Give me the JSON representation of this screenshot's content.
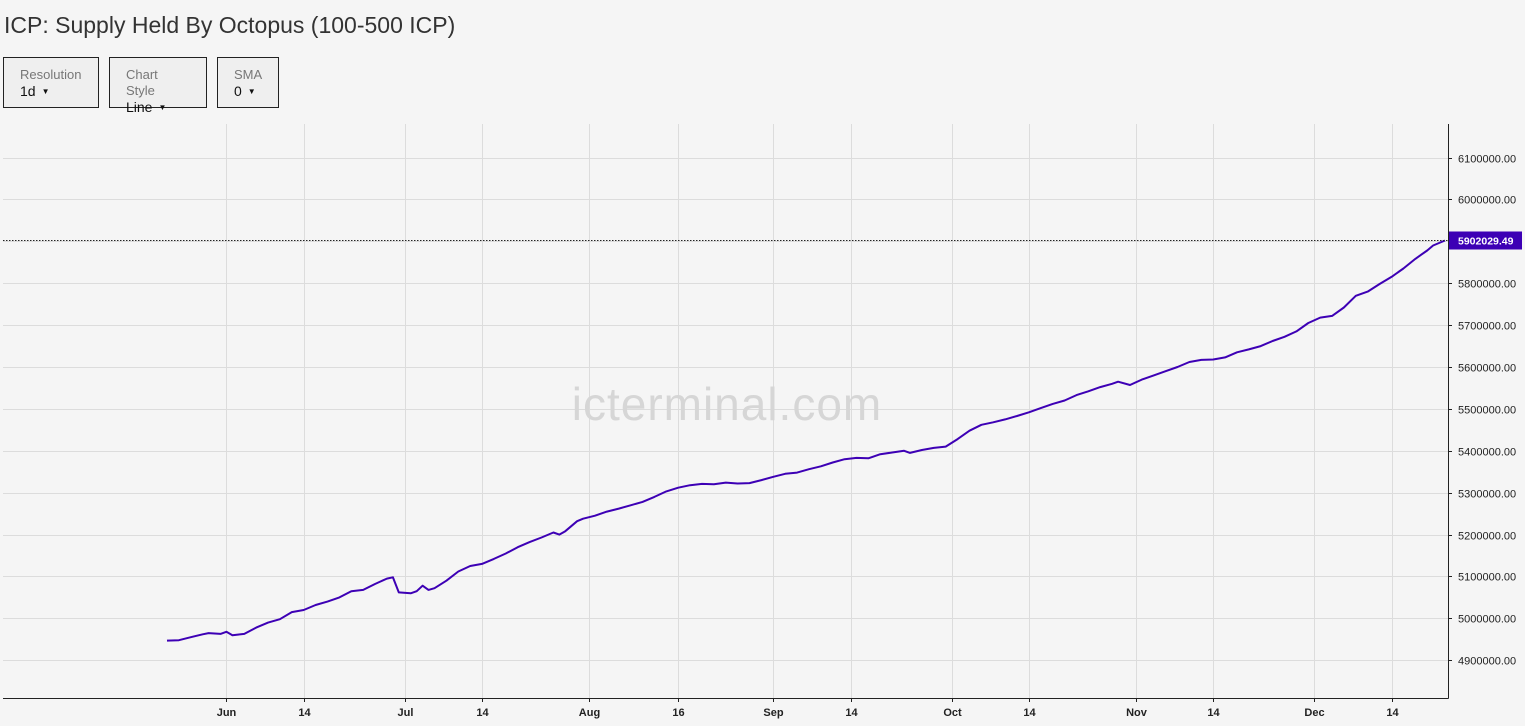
{
  "header": {
    "title": "ICP: Supply Held By Octopus (100-500 ICP)"
  },
  "controls": [
    {
      "label": "Resolution",
      "value": "1d"
    },
    {
      "label": "Chart Style",
      "value": "Line"
    },
    {
      "label": "SMA",
      "value": "0"
    }
  ],
  "watermark": "icterminal.com",
  "chart_data": {
    "type": "line",
    "title": "ICP: Supply Held By Octopus (100-500 ICP)",
    "xlabel": "",
    "ylabel": "",
    "x_range": [
      "2023-05-22",
      "2023-12-23"
    ],
    "ylim": [
      4810000,
      6180000
    ],
    "grid": true,
    "line_color": "#3d00b5",
    "y_ticks": [
      4900000,
      5000000,
      5100000,
      5200000,
      5300000,
      5400000,
      5500000,
      5600000,
      5700000,
      5800000,
      5900000,
      6000000,
      6100000
    ],
    "y_tick_labels": [
      "4900000.00",
      "5000000.00",
      "5100000.00",
      "5200000.00",
      "5300000.00",
      "5400000.00",
      "5500000.00",
      "5600000.00",
      "5700000.00",
      "5800000.00",
      "5900000.00",
      "6000000.00",
      "6100000.00"
    ],
    "x_ticks": [
      {
        "date": "2023-06-01",
        "label": "Jun"
      },
      {
        "date": "2023-06-14",
        "label": "14"
      },
      {
        "date": "2023-07-01",
        "label": "Jul"
      },
      {
        "date": "2023-07-14",
        "label": "14"
      },
      {
        "date": "2023-08-01",
        "label": "Aug"
      },
      {
        "date": "2023-08-16",
        "label": "16"
      },
      {
        "date": "2023-09-01",
        "label": "Sep"
      },
      {
        "date": "2023-09-14",
        "label": "14"
      },
      {
        "date": "2023-10-01",
        "label": "Oct"
      },
      {
        "date": "2023-10-14",
        "label": "14"
      },
      {
        "date": "2023-11-01",
        "label": "Nov"
      },
      {
        "date": "2023-11-14",
        "label": "14"
      },
      {
        "date": "2023-12-01",
        "label": "Dec"
      },
      {
        "date": "2023-12-14",
        "label": "14"
      }
    ],
    "last_value": 5902029.49,
    "last_value_label": "5902029.49",
    "series": [
      {
        "points": [
          [
            "2023-05-22",
            4947000
          ],
          [
            "2023-05-24",
            4948000
          ],
          [
            "2023-05-26",
            4955000
          ],
          [
            "2023-05-28",
            4962000
          ],
          [
            "2023-05-29",
            4965000
          ],
          [
            "2023-05-31",
            4963000
          ],
          [
            "2023-06-01",
            4968000
          ],
          [
            "2023-06-02",
            4960000
          ],
          [
            "2023-06-04",
            4963000
          ],
          [
            "2023-06-06",
            4978000
          ],
          [
            "2023-06-08",
            4990000
          ],
          [
            "2023-06-10",
            4998000
          ],
          [
            "2023-06-12",
            5015000
          ],
          [
            "2023-06-14",
            5020000
          ],
          [
            "2023-06-16",
            5032000
          ],
          [
            "2023-06-18",
            5040000
          ],
          [
            "2023-06-20",
            5050000
          ],
          [
            "2023-06-22",
            5065000
          ],
          [
            "2023-06-24",
            5068000
          ],
          [
            "2023-06-26",
            5082000
          ],
          [
            "2023-06-28",
            5095000
          ],
          [
            "2023-06-29",
            5098000
          ],
          [
            "2023-06-30",
            5062000
          ],
          [
            "2023-07-02",
            5060000
          ],
          [
            "2023-07-03",
            5065000
          ],
          [
            "2023-07-04",
            5078000
          ],
          [
            "2023-07-05",
            5068000
          ],
          [
            "2023-07-06",
            5072000
          ],
          [
            "2023-07-08",
            5090000
          ],
          [
            "2023-07-10",
            5112000
          ],
          [
            "2023-07-12",
            5125000
          ],
          [
            "2023-07-14",
            5130000
          ],
          [
            "2023-07-16",
            5142000
          ],
          [
            "2023-07-18",
            5155000
          ],
          [
            "2023-07-20",
            5170000
          ],
          [
            "2023-07-22",
            5182000
          ],
          [
            "2023-07-24",
            5193000
          ],
          [
            "2023-07-26",
            5205000
          ],
          [
            "2023-07-27",
            5200000
          ],
          [
            "2023-07-28",
            5208000
          ],
          [
            "2023-07-30",
            5232000
          ],
          [
            "2023-07-31",
            5238000
          ],
          [
            "2023-08-02",
            5245000
          ],
          [
            "2023-08-04",
            5255000
          ],
          [
            "2023-08-06",
            5262000
          ],
          [
            "2023-08-08",
            5270000
          ],
          [
            "2023-08-10",
            5278000
          ],
          [
            "2023-08-12",
            5290000
          ],
          [
            "2023-08-14",
            5303000
          ],
          [
            "2023-08-16",
            5312000
          ],
          [
            "2023-08-18",
            5318000
          ],
          [
            "2023-08-20",
            5321000
          ],
          [
            "2023-08-22",
            5320000
          ],
          [
            "2023-08-24",
            5324000
          ],
          [
            "2023-08-26",
            5322000
          ],
          [
            "2023-08-28",
            5323000
          ],
          [
            "2023-08-30",
            5330000
          ],
          [
            "2023-09-01",
            5338000
          ],
          [
            "2023-09-03",
            5345000
          ],
          [
            "2023-09-05",
            5348000
          ],
          [
            "2023-09-07",
            5356000
          ],
          [
            "2023-09-09",
            5363000
          ],
          [
            "2023-09-11",
            5372000
          ],
          [
            "2023-09-13",
            5380000
          ],
          [
            "2023-09-15",
            5383000
          ],
          [
            "2023-09-17",
            5382000
          ],
          [
            "2023-09-19",
            5392000
          ],
          [
            "2023-09-21",
            5396000
          ],
          [
            "2023-09-23",
            5400000
          ],
          [
            "2023-09-24",
            5395000
          ],
          [
            "2023-09-26",
            5402000
          ],
          [
            "2023-09-28",
            5407000
          ],
          [
            "2023-09-30",
            5410000
          ],
          [
            "2023-10-02",
            5428000
          ],
          [
            "2023-10-04",
            5448000
          ],
          [
            "2023-10-06",
            5462000
          ],
          [
            "2023-10-08",
            5468000
          ],
          [
            "2023-10-10",
            5475000
          ],
          [
            "2023-10-12",
            5483000
          ],
          [
            "2023-10-14",
            5492000
          ],
          [
            "2023-10-16",
            5502000
          ],
          [
            "2023-10-18",
            5512000
          ],
          [
            "2023-10-20",
            5520000
          ],
          [
            "2023-10-22",
            5533000
          ],
          [
            "2023-10-24",
            5542000
          ],
          [
            "2023-10-26",
            5552000
          ],
          [
            "2023-10-28",
            5560000
          ],
          [
            "2023-10-29",
            5565000
          ],
          [
            "2023-10-31",
            5557000
          ],
          [
            "2023-11-02",
            5570000
          ],
          [
            "2023-11-04",
            5580000
          ],
          [
            "2023-11-06",
            5590000
          ],
          [
            "2023-11-08",
            5600000
          ],
          [
            "2023-11-10",
            5612000
          ],
          [
            "2023-11-12",
            5617000
          ],
          [
            "2023-11-14",
            5618000
          ],
          [
            "2023-11-16",
            5623000
          ],
          [
            "2023-11-18",
            5635000
          ],
          [
            "2023-11-20",
            5642000
          ],
          [
            "2023-11-22",
            5650000
          ],
          [
            "2023-11-24",
            5662000
          ],
          [
            "2023-11-26",
            5672000
          ],
          [
            "2023-11-28",
            5685000
          ],
          [
            "2023-11-30",
            5705000
          ],
          [
            "2023-12-02",
            5718000
          ],
          [
            "2023-12-04",
            5722000
          ],
          [
            "2023-12-06",
            5742000
          ],
          [
            "2023-12-08",
            5770000
          ],
          [
            "2023-12-10",
            5780000
          ],
          [
            "2023-12-12",
            5798000
          ],
          [
            "2023-12-14",
            5815000
          ],
          [
            "2023-12-16",
            5835000
          ],
          [
            "2023-12-18",
            5858000
          ],
          [
            "2023-12-19",
            5868000
          ],
          [
            "2023-12-20",
            5878000
          ],
          [
            "2023-12-21",
            5890000
          ],
          [
            "2023-12-23",
            5902029.49
          ]
        ]
      }
    ]
  }
}
